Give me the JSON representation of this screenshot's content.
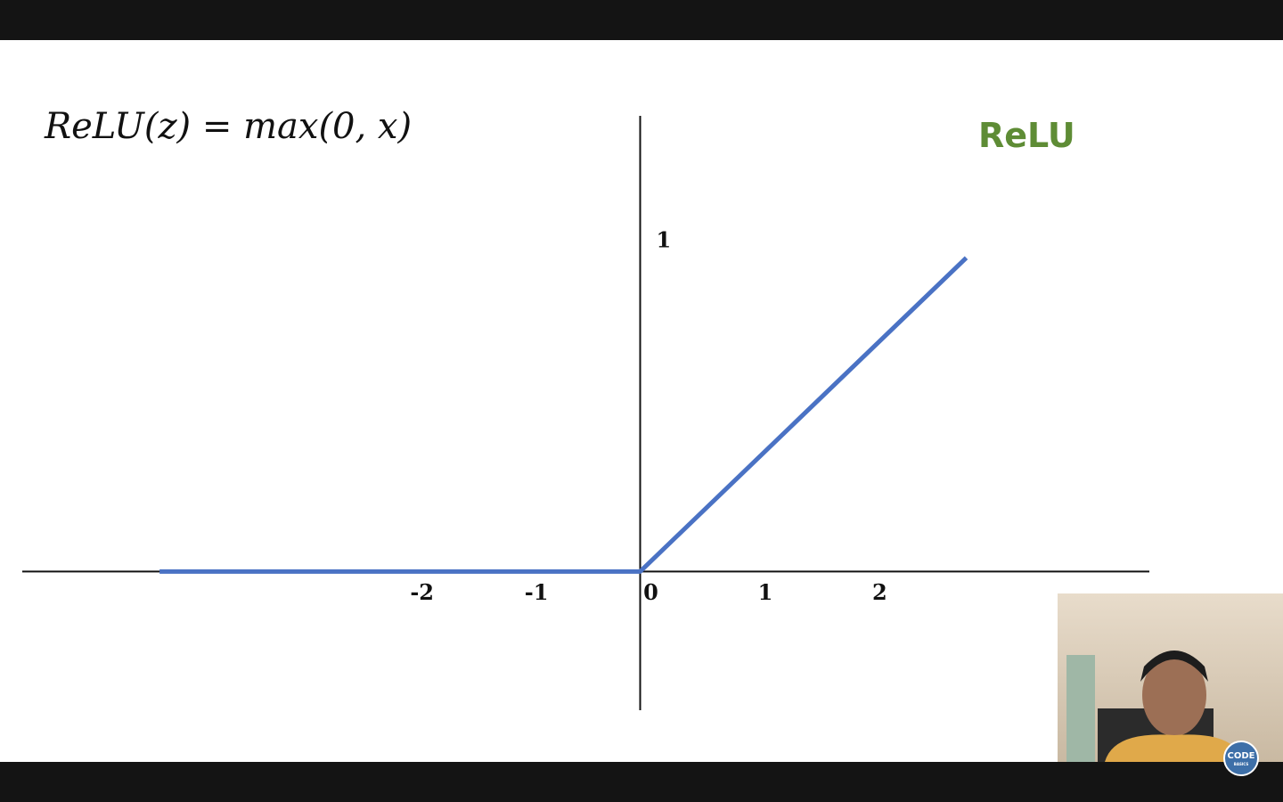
{
  "chart_data": {
    "type": "line",
    "title": "ReLU(z) = max(0, x)",
    "x": [
      -4.2,
      0,
      2.85
    ],
    "series": [
      {
        "name": "ReLU",
        "color": "#4a72c4",
        "values": [
          0,
          0,
          0.95
        ]
      }
    ],
    "xlim": [
      -5.4,
      4.45
    ],
    "xticks": [
      -2,
      -1,
      0,
      1,
      2
    ],
    "ylim": [
      -0.42,
      1.38
    ],
    "yticks": [
      1
    ],
    "grid": false
  },
  "overlay": {
    "logo": "CODE",
    "logo_sub": "BASICS"
  }
}
